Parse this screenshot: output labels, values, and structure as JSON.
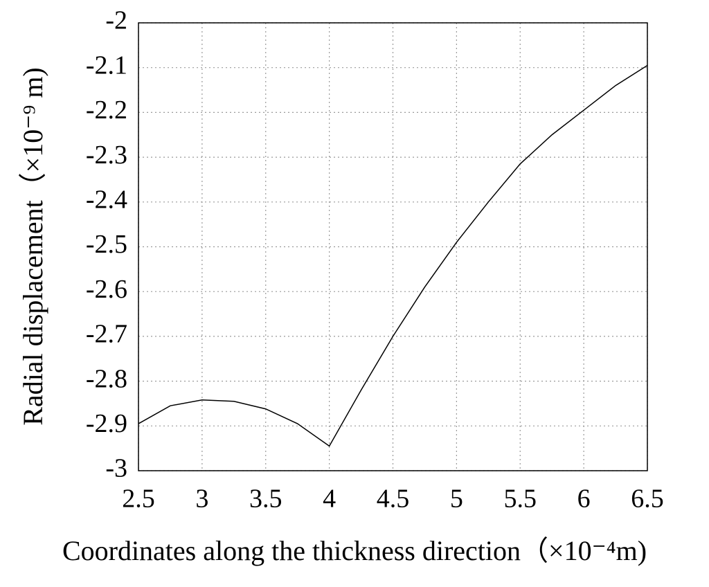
{
  "chart_data": {
    "type": "line",
    "x_label": "Coordinates along the thickness direction（×10⁻⁴m)",
    "y_label": "Radial displacement（×10⁻⁹ m)",
    "x": [
      2.5,
      2.75,
      3.0,
      3.25,
      3.5,
      3.75,
      4.0,
      4.25,
      4.5,
      4.75,
      5.0,
      5.25,
      5.5,
      5.75,
      6.0,
      6.25,
      6.5
    ],
    "series": [
      {
        "color": "#000000",
        "values": [
          -2.895,
          -2.855,
          -2.842,
          -2.845,
          -2.862,
          -2.895,
          -2.945,
          -2.82,
          -2.7,
          -2.59,
          -2.49,
          -2.4,
          -2.315,
          -2.25,
          -2.195,
          -2.14,
          -2.095
        ]
      }
    ],
    "xlim": [
      2.5,
      6.5
    ],
    "xticks": [
      2.5,
      3,
      3.5,
      4,
      4.5,
      5,
      5.5,
      6,
      6.5
    ],
    "ylim": [
      -3,
      -2
    ],
    "yticks": [
      -2,
      -2.1,
      -2.2,
      -2.3,
      -2.4,
      -2.5,
      -2.6,
      -2.7,
      -2.8,
      -2.9,
      -3
    ],
    "grid": true
  }
}
